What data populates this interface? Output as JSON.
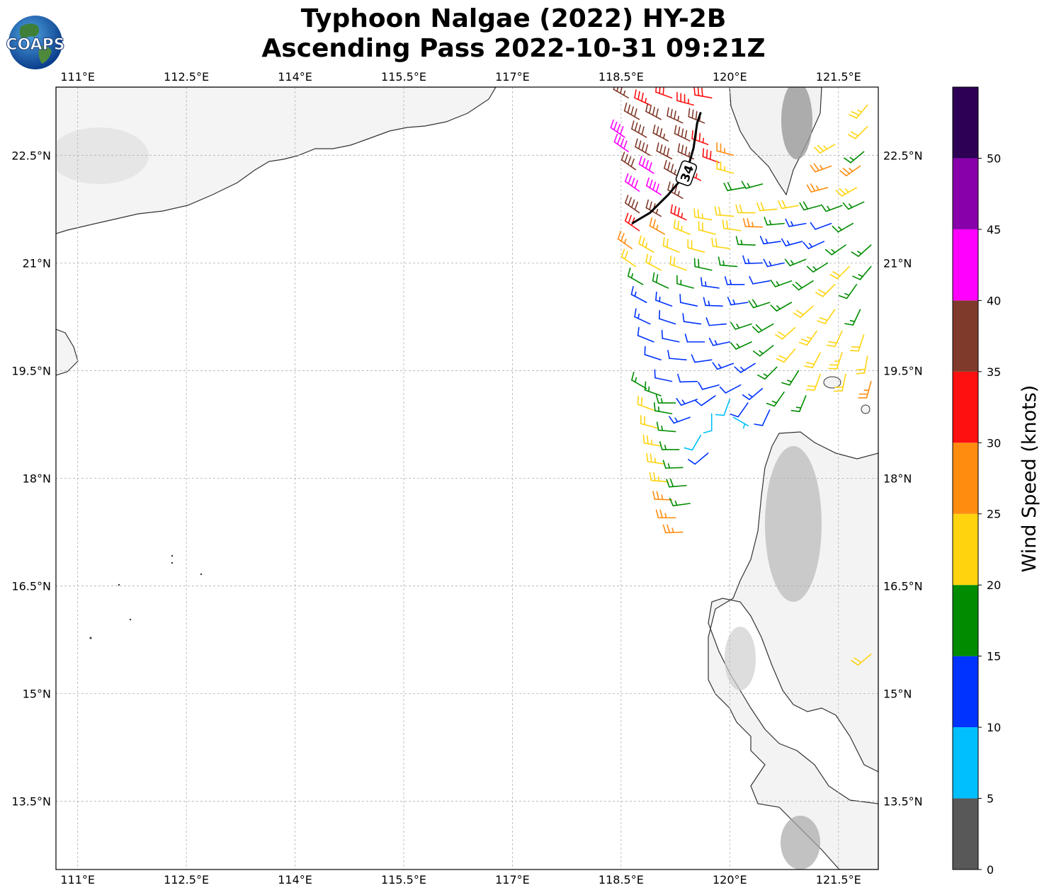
{
  "header": {
    "title_line1": "Typhoon Nalgae (2022) HY-2B",
    "title_line2": "Ascending Pass 2022-10-31 09:21Z",
    "logo_text": "COAPS"
  },
  "map": {
    "lon_ticks": [
      "111°E",
      "112.5°E",
      "114°E",
      "115.5°E",
      "117°E",
      "118.5°E",
      "120°E",
      "121.5°E"
    ],
    "lat_ticks": [
      "22.5°N",
      "21°N",
      "19.5°N",
      "18°N",
      "16.5°N",
      "15°N",
      "13.5°N"
    ],
    "lon_values": [
      111,
      112.5,
      114,
      115.5,
      117,
      118.5,
      120,
      121.5
    ],
    "lat_values": [
      22.5,
      21,
      19.5,
      18,
      16.5,
      15,
      13.5
    ],
    "lon_range": [
      110.7,
      122.05
    ],
    "lat_range": [
      12.55,
      23.45
    ],
    "gridlines": true,
    "contour_label": "34",
    "land_color": "#f7f7f7",
    "coast_color": "#333333"
  },
  "colorbar": {
    "label": "Wind Speed (knots)",
    "tick_labels": [
      "0",
      "5",
      "10",
      "15",
      "20",
      "25",
      "30",
      "35",
      "40",
      "45",
      "50"
    ],
    "bins": [
      {
        "from": 0,
        "to": 5,
        "color": "#585858"
      },
      {
        "from": 5,
        "to": 10,
        "color": "#00bfff"
      },
      {
        "from": 10,
        "to": 15,
        "color": "#0033ff"
      },
      {
        "from": 15,
        "to": 20,
        "color": "#008c00"
      },
      {
        "from": 20,
        "to": 25,
        "color": "#ffd40f"
      },
      {
        "from": 25,
        "to": 30,
        "color": "#ff8c0f"
      },
      {
        "from": 30,
        "to": 35,
        "color": "#ff1010"
      },
      {
        "from": 35,
        "to": 40,
        "color": "#803a2b"
      },
      {
        "from": 40,
        "to": 45,
        "color": "#ff00ff"
      },
      {
        "from": 45,
        "to": 50,
        "color": "#8800aa"
      },
      {
        "from": 50,
        "to": 55,
        "color": "#2d0055"
      }
    ]
  },
  "winds": [
    {
      "lat": 23.3,
      "lon": 118.6,
      "speed": 37,
      "dir": 300
    },
    {
      "lat": 23.2,
      "lon": 118.9,
      "speed": 33,
      "dir": 295
    },
    {
      "lat": 23.3,
      "lon": 119.2,
      "speed": 32,
      "dir": 290
    },
    {
      "lat": 23.2,
      "lon": 119.5,
      "speed": 33,
      "dir": 285
    },
    {
      "lat": 23.3,
      "lon": 119.75,
      "speed": 32,
      "dir": 280
    },
    {
      "lat": 23.0,
      "lon": 118.75,
      "speed": 38,
      "dir": 300
    },
    {
      "lat": 23.0,
      "lon": 119.05,
      "speed": 38,
      "dir": 298
    },
    {
      "lat": 22.95,
      "lon": 119.35,
      "speed": 37,
      "dir": 295
    },
    {
      "lat": 22.95,
      "lon": 119.65,
      "speed": 36,
      "dir": 292
    },
    {
      "lat": 22.75,
      "lon": 118.55,
      "speed": 41,
      "dir": 305
    },
    {
      "lat": 22.75,
      "lon": 118.85,
      "speed": 38,
      "dir": 300
    },
    {
      "lat": 22.7,
      "lon": 119.15,
      "speed": 37,
      "dir": 298
    },
    {
      "lat": 22.7,
      "lon": 119.45,
      "speed": 38,
      "dir": 296
    },
    {
      "lat": 22.65,
      "lon": 119.7,
      "speed": 33,
      "dir": 290
    },
    {
      "lat": 22.55,
      "lon": 118.6,
      "speed": 42,
      "dir": 305
    },
    {
      "lat": 22.5,
      "lon": 118.9,
      "speed": 38,
      "dir": 300
    },
    {
      "lat": 22.45,
      "lon": 119.2,
      "speed": 38,
      "dir": 298
    },
    {
      "lat": 22.45,
      "lon": 119.5,
      "speed": 37,
      "dir": 295
    },
    {
      "lat": 22.4,
      "lon": 119.85,
      "speed": 31,
      "dir": 290
    },
    {
      "lat": 22.5,
      "lon": 120.05,
      "speed": 26,
      "dir": 285
    },
    {
      "lat": 22.3,
      "lon": 118.7,
      "speed": 38,
      "dir": 305
    },
    {
      "lat": 22.25,
      "lon": 118.95,
      "speed": 41,
      "dir": 302
    },
    {
      "lat": 22.2,
      "lon": 119.3,
      "speed": 36,
      "dir": 300
    },
    {
      "lat": 22.15,
      "lon": 119.6,
      "speed": 33,
      "dir": 295
    },
    {
      "lat": 22.25,
      "lon": 120.05,
      "speed": 24,
      "dir": 285
    },
    {
      "lat": 22.0,
      "lon": 118.75,
      "speed": 41,
      "dir": 305
    },
    {
      "lat": 21.95,
      "lon": 119.05,
      "speed": 42,
      "dir": 302
    },
    {
      "lat": 21.9,
      "lon": 119.35,
      "speed": 37,
      "dir": 300
    },
    {
      "lat": 22.05,
      "lon": 120.2,
      "speed": 18,
      "dir": 260
    },
    {
      "lat": 22.1,
      "lon": 120.45,
      "speed": 17,
      "dir": 255
    },
    {
      "lat": 21.7,
      "lon": 118.75,
      "speed": 38,
      "dir": 305
    },
    {
      "lat": 21.65,
      "lon": 119.05,
      "speed": 37,
      "dir": 300
    },
    {
      "lat": 21.6,
      "lon": 119.4,
      "speed": 33,
      "dir": 295
    },
    {
      "lat": 21.6,
      "lon": 119.75,
      "speed": 23,
      "dir": 280
    },
    {
      "lat": 21.65,
      "lon": 120.05,
      "speed": 22,
      "dir": 275
    },
    {
      "lat": 21.7,
      "lon": 120.35,
      "speed": 21,
      "dir": 270
    },
    {
      "lat": 21.75,
      "lon": 120.65,
      "speed": 22,
      "dir": 265
    },
    {
      "lat": 21.8,
      "lon": 120.95,
      "speed": 21,
      "dir": 260
    },
    {
      "lat": 21.8,
      "lon": 121.25,
      "speed": 18,
      "dir": 255
    },
    {
      "lat": 21.8,
      "lon": 121.55,
      "speed": 17,
      "dir": 250
    },
    {
      "lat": 21.85,
      "lon": 121.85,
      "speed": 16,
      "dir": 245
    },
    {
      "lat": 21.45,
      "lon": 118.75,
      "speed": 32,
      "dir": 305
    },
    {
      "lat": 21.4,
      "lon": 119.1,
      "speed": 27,
      "dir": 300
    },
    {
      "lat": 21.4,
      "lon": 119.45,
      "speed": 23,
      "dir": 292
    },
    {
      "lat": 21.4,
      "lon": 119.8,
      "speed": 22,
      "dir": 285
    },
    {
      "lat": 21.45,
      "lon": 120.15,
      "speed": 21,
      "dir": 278
    },
    {
      "lat": 21.5,
      "lon": 120.45,
      "speed": 27,
      "dir": 272
    },
    {
      "lat": 21.55,
      "lon": 120.75,
      "speed": 17,
      "dir": 265
    },
    {
      "lat": 21.55,
      "lon": 121.05,
      "speed": 14,
      "dir": 260
    },
    {
      "lat": 21.55,
      "lon": 121.4,
      "speed": 12,
      "dir": 250
    },
    {
      "lat": 21.55,
      "lon": 121.7,
      "speed": 16,
      "dir": 240
    },
    {
      "lat": 21.2,
      "lon": 118.65,
      "speed": 26,
      "dir": 305
    },
    {
      "lat": 21.15,
      "lon": 118.95,
      "speed": 23,
      "dir": 300
    },
    {
      "lat": 21.15,
      "lon": 119.3,
      "speed": 22,
      "dir": 292
    },
    {
      "lat": 21.15,
      "lon": 119.65,
      "speed": 22,
      "dir": 285
    },
    {
      "lat": 21.2,
      "lon": 120.0,
      "speed": 22,
      "dir": 278
    },
    {
      "lat": 21.25,
      "lon": 120.35,
      "speed": 16,
      "dir": 272
    },
    {
      "lat": 21.3,
      "lon": 120.7,
      "speed": 14,
      "dir": 262
    },
    {
      "lat": 21.3,
      "lon": 121.0,
      "speed": 13,
      "dir": 255
    },
    {
      "lat": 21.3,
      "lon": 121.3,
      "speed": 14,
      "dir": 245
    },
    {
      "lat": 21.25,
      "lon": 121.6,
      "speed": 17,
      "dir": 235
    },
    {
      "lat": 21.25,
      "lon": 121.95,
      "speed": 17,
      "dir": 228
    },
    {
      "lat": 20.95,
      "lon": 118.7,
      "speed": 22,
      "dir": 305
    },
    {
      "lat": 20.9,
      "lon": 119.05,
      "speed": 22,
      "dir": 298
    },
    {
      "lat": 20.9,
      "lon": 119.4,
      "speed": 21,
      "dir": 290
    },
    {
      "lat": 20.9,
      "lon": 119.75,
      "speed": 18,
      "dir": 282
    },
    {
      "lat": 20.95,
      "lon": 120.1,
      "speed": 17,
      "dir": 275
    },
    {
      "lat": 21.0,
      "lon": 120.45,
      "speed": 14,
      "dir": 268
    },
    {
      "lat": 21.0,
      "lon": 120.75,
      "speed": 13,
      "dir": 258
    },
    {
      "lat": 21.05,
      "lon": 121.05,
      "speed": 17,
      "dir": 248
    },
    {
      "lat": 21.0,
      "lon": 121.35,
      "speed": 17,
      "dir": 238
    },
    {
      "lat": 20.95,
      "lon": 121.65,
      "speed": 22,
      "dir": 225
    },
    {
      "lat": 20.95,
      "lon": 121.95,
      "speed": 17,
      "dir": 220
    },
    {
      "lat": 20.7,
      "lon": 118.8,
      "speed": 17,
      "dir": 300
    },
    {
      "lat": 20.65,
      "lon": 119.15,
      "speed": 18,
      "dir": 295
    },
    {
      "lat": 20.65,
      "lon": 119.5,
      "speed": 17,
      "dir": 285
    },
    {
      "lat": 20.65,
      "lon": 119.85,
      "speed": 14,
      "dir": 278
    },
    {
      "lat": 20.7,
      "lon": 120.2,
      "speed": 13,
      "dir": 270
    },
    {
      "lat": 20.75,
      "lon": 120.55,
      "speed": 12,
      "dir": 260
    },
    {
      "lat": 20.75,
      "lon": 120.85,
      "speed": 17,
      "dir": 250
    },
    {
      "lat": 20.75,
      "lon": 121.15,
      "speed": 18,
      "dir": 238
    },
    {
      "lat": 20.7,
      "lon": 121.45,
      "speed": 22,
      "dir": 225
    },
    {
      "lat": 20.7,
      "lon": 121.75,
      "speed": 17,
      "dir": 215
    },
    {
      "lat": 20.45,
      "lon": 118.85,
      "speed": 14,
      "dir": 298
    },
    {
      "lat": 20.4,
      "lon": 119.2,
      "speed": 13,
      "dir": 290
    },
    {
      "lat": 20.4,
      "lon": 119.55,
      "speed": 12,
      "dir": 282
    },
    {
      "lat": 20.4,
      "lon": 119.9,
      "speed": 13,
      "dir": 272
    },
    {
      "lat": 20.45,
      "lon": 120.25,
      "speed": 14,
      "dir": 262
    },
    {
      "lat": 20.45,
      "lon": 120.55,
      "speed": 18,
      "dir": 252
    },
    {
      "lat": 20.45,
      "lon": 120.85,
      "speed": 17,
      "dir": 240
    },
    {
      "lat": 20.4,
      "lon": 121.15,
      "speed": 22,
      "dir": 228
    },
    {
      "lat": 20.35,
      "lon": 121.45,
      "speed": 22,
      "dir": 215
    },
    {
      "lat": 20.35,
      "lon": 121.8,
      "speed": 17,
      "dir": 205
    },
    {
      "lat": 20.15,
      "lon": 118.9,
      "speed": 13,
      "dir": 295
    },
    {
      "lat": 20.15,
      "lon": 119.25,
      "speed": 12,
      "dir": 288
    },
    {
      "lat": 20.15,
      "lon": 119.6,
      "speed": 12,
      "dir": 278
    },
    {
      "lat": 20.15,
      "lon": 119.95,
      "speed": 12,
      "dir": 265
    },
    {
      "lat": 20.15,
      "lon": 120.3,
      "speed": 17,
      "dir": 252
    },
    {
      "lat": 20.15,
      "lon": 120.6,
      "speed": 18,
      "dir": 240
    },
    {
      "lat": 20.1,
      "lon": 120.9,
      "speed": 22,
      "dir": 228
    },
    {
      "lat": 20.05,
      "lon": 121.2,
      "speed": 23,
      "dir": 215
    },
    {
      "lat": 20.05,
      "lon": 121.55,
      "speed": 22,
      "dir": 205
    },
    {
      "lat": 20.0,
      "lon": 121.85,
      "speed": 21,
      "dir": 198
    },
    {
      "lat": 19.9,
      "lon": 118.95,
      "speed": 12,
      "dir": 292
    },
    {
      "lat": 19.9,
      "lon": 119.3,
      "speed": 12,
      "dir": 282
    },
    {
      "lat": 19.9,
      "lon": 119.65,
      "speed": 12,
      "dir": 270
    },
    {
      "lat": 19.9,
      "lon": 120.0,
      "speed": 14,
      "dir": 258
    },
    {
      "lat": 19.9,
      "lon": 120.3,
      "speed": 16,
      "dir": 245
    },
    {
      "lat": 19.85,
      "lon": 120.6,
      "speed": 17,
      "dir": 232
    },
    {
      "lat": 19.8,
      "lon": 120.9,
      "speed": 22,
      "dir": 220
    },
    {
      "lat": 19.75,
      "lon": 121.25,
      "speed": 22,
      "dir": 208
    },
    {
      "lat": 19.75,
      "lon": 121.55,
      "speed": 23,
      "dir": 198
    },
    {
      "lat": 19.7,
      "lon": 121.9,
      "speed": 22,
      "dir": 190
    },
    {
      "lat": 19.65,
      "lon": 119.05,
      "speed": 12,
      "dir": 288
    },
    {
      "lat": 19.65,
      "lon": 119.4,
      "speed": 12,
      "dir": 275
    },
    {
      "lat": 19.65,
      "lon": 119.75,
      "speed": 12,
      "dir": 262
    },
    {
      "lat": 19.6,
      "lon": 120.05,
      "speed": 13,
      "dir": 250
    },
    {
      "lat": 19.6,
      "lon": 120.35,
      "speed": 14,
      "dir": 238
    },
    {
      "lat": 19.55,
      "lon": 120.65,
      "speed": 17,
      "dir": 225
    },
    {
      "lat": 19.5,
      "lon": 120.95,
      "speed": 17,
      "dir": 212
    },
    {
      "lat": 19.45,
      "lon": 121.25,
      "speed": 22,
      "dir": 200
    },
    {
      "lat": 19.45,
      "lon": 121.6,
      "speed": 22,
      "dir": 192
    },
    {
      "lat": 19.35,
      "lon": 119.2,
      "speed": 12,
      "dir": 282
    },
    {
      "lat": 19.35,
      "lon": 119.55,
      "speed": 12,
      "dir": 268
    },
    {
      "lat": 19.3,
      "lon": 119.85,
      "speed": 11,
      "dir": 255
    },
    {
      "lat": 19.3,
      "lon": 120.15,
      "speed": 12,
      "dir": 242
    },
    {
      "lat": 19.25,
      "lon": 120.45,
      "speed": 13,
      "dir": 230
    },
    {
      "lat": 19.2,
      "lon": 120.75,
      "speed": 17,
      "dir": 215
    },
    {
      "lat": 19.15,
      "lon": 121.05,
      "speed": 17,
      "dir": 202
    },
    {
      "lat": 19.25,
      "lon": 118.85,
      "speed": 17,
      "dir": 300
    },
    {
      "lat": 19.15,
      "lon": 119.05,
      "speed": 17,
      "dir": 290
    },
    {
      "lat": 19.05,
      "lon": 119.25,
      "speed": 17,
      "dir": 270
    },
    {
      "lat": 19.1,
      "lon": 119.55,
      "speed": 13,
      "dir": 250
    },
    {
      "lat": 19.15,
      "lon": 119.8,
      "speed": 12,
      "dir": 235
    },
    {
      "lat": 19.1,
      "lon": 120.0,
      "speed": 8,
      "dir": 200
    },
    {
      "lat": 19.05,
      "lon": 120.25,
      "speed": 12,
      "dir": 215
    },
    {
      "lat": 18.95,
      "lon": 120.55,
      "speed": 12,
      "dir": 205
    },
    {
      "lat": 18.95,
      "lon": 118.95,
      "speed": 22,
      "dir": 290
    },
    {
      "lat": 18.9,
      "lon": 119.2,
      "speed": 17,
      "dir": 280
    },
    {
      "lat": 18.85,
      "lon": 119.45,
      "speed": 13,
      "dir": 250
    },
    {
      "lat": 18.9,
      "lon": 119.75,
      "speed": 8,
      "dir": 180
    },
    {
      "lat": 18.85,
      "lon": 120.05,
      "speed": 6,
      "dir": 120
    },
    {
      "lat": 18.7,
      "lon": 119.0,
      "speed": 22,
      "dir": 285
    },
    {
      "lat": 18.65,
      "lon": 119.25,
      "speed": 17,
      "dir": 275
    },
    {
      "lat": 18.6,
      "lon": 119.6,
      "speed": 8,
      "dir": 210
    },
    {
      "lat": 18.45,
      "lon": 119.05,
      "speed": 23,
      "dir": 280
    },
    {
      "lat": 18.4,
      "lon": 119.3,
      "speed": 17,
      "dir": 270
    },
    {
      "lat": 18.35,
      "lon": 119.7,
      "speed": 12,
      "dir": 230
    },
    {
      "lat": 18.2,
      "lon": 119.1,
      "speed": 23,
      "dir": 278
    },
    {
      "lat": 18.15,
      "lon": 119.35,
      "speed": 17,
      "dir": 268
    },
    {
      "lat": 17.95,
      "lon": 119.15,
      "speed": 23,
      "dir": 275
    },
    {
      "lat": 17.9,
      "lon": 119.4,
      "speed": 18,
      "dir": 265
    },
    {
      "lat": 17.7,
      "lon": 119.2,
      "speed": 27,
      "dir": 272
    },
    {
      "lat": 17.65,
      "lon": 119.45,
      "speed": 17,
      "dir": 262
    },
    {
      "lat": 17.45,
      "lon": 119.25,
      "speed": 27,
      "dir": 270
    },
    {
      "lat": 17.25,
      "lon": 119.35,
      "speed": 27,
      "dir": 268
    },
    {
      "lat": 23.2,
      "lon": 121.9,
      "speed": 23,
      "dir": 220
    },
    {
      "lat": 22.9,
      "lon": 121.9,
      "speed": 22,
      "dir": 225
    },
    {
      "lat": 22.65,
      "lon": 121.45,
      "speed": 23,
      "dir": 240
    },
    {
      "lat": 22.55,
      "lon": 121.85,
      "speed": 17,
      "dir": 230
    },
    {
      "lat": 22.35,
      "lon": 121.4,
      "speed": 27,
      "dir": 250
    },
    {
      "lat": 22.35,
      "lon": 121.8,
      "speed": 27,
      "dir": 235
    },
    {
      "lat": 22.05,
      "lon": 121.35,
      "speed": 27,
      "dir": 255
    },
    {
      "lat": 22.05,
      "lon": 121.75,
      "speed": 23,
      "dir": 240
    },
    {
      "lat": 19.35,
      "lon": 121.95,
      "speed": 27,
      "dir": 195
    },
    {
      "lat": 15.55,
      "lon": 121.95,
      "speed": 22,
      "dir": 230
    }
  ],
  "contour34": [
    [
      118.65,
      21.55
    ],
    [
      118.9,
      21.7
    ],
    [
      119.15,
      21.95
    ],
    [
      119.4,
      22.25
    ],
    [
      119.5,
      22.6
    ],
    [
      119.55,
      22.95
    ],
    [
      119.6,
      23.1
    ]
  ]
}
